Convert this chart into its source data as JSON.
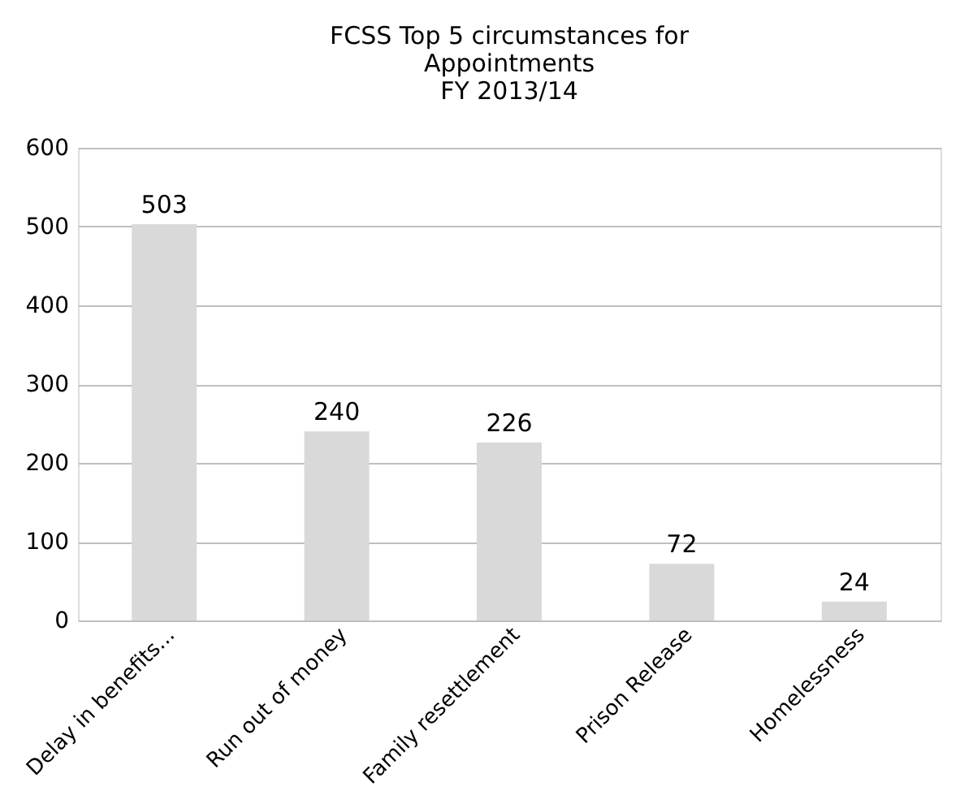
{
  "chart_data": {
    "type": "bar",
    "title": "FCSS Top 5 circumstances for\nAppointments\nFY 2013/14",
    "categories": [
      "Delay in benefits...",
      "Run out of money",
      "Family resettlement",
      "Prison Release",
      "Homelessness"
    ],
    "values": [
      503,
      240,
      226,
      72,
      24
    ],
    "color": "#d9d9d9",
    "ylim": [
      0,
      600
    ],
    "yticks": [
      0,
      100,
      200,
      300,
      400,
      500,
      600
    ],
    "grid": "y",
    "data_labels": true
  }
}
